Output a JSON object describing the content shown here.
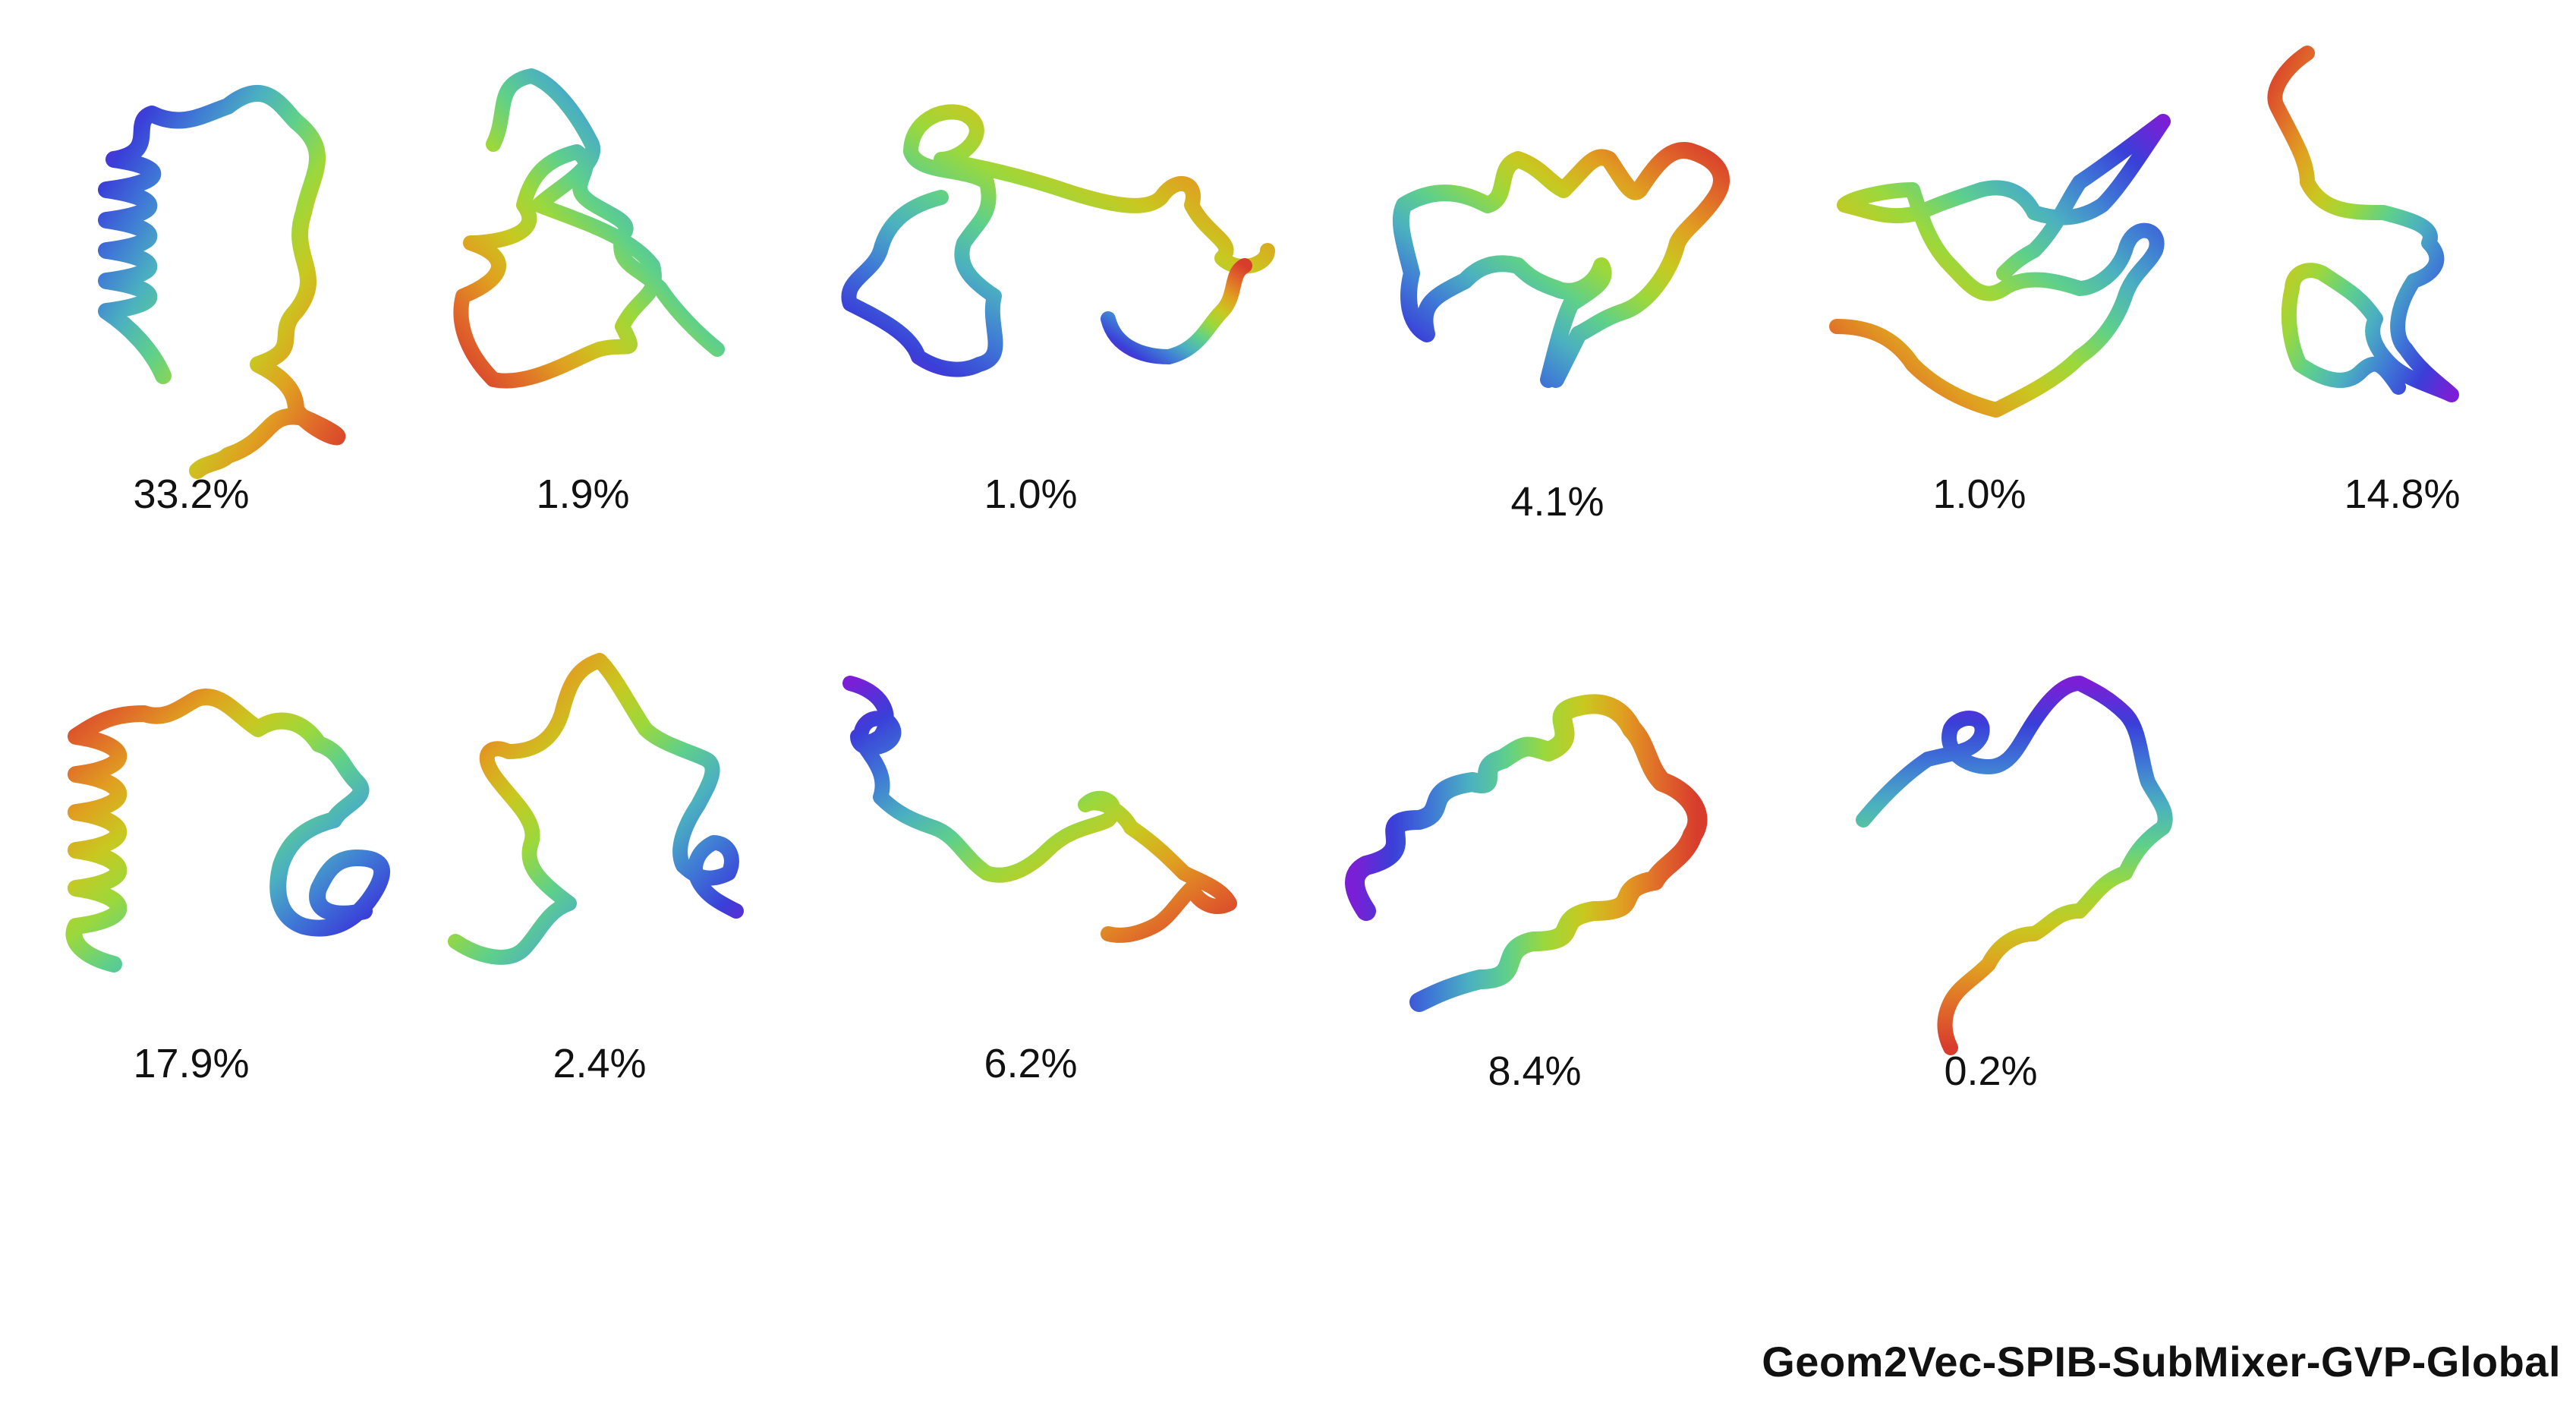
{
  "states": [
    {
      "percent": "33.2%"
    },
    {
      "percent": "1.9%"
    },
    {
      "percent": "1.0%"
    },
    {
      "percent": "4.1%"
    },
    {
      "percent": "1.0%"
    },
    {
      "percent": "14.8%"
    },
    {
      "percent": "17.9%"
    },
    {
      "percent": "2.4%"
    },
    {
      "percent": "6.2%"
    },
    {
      "percent": "8.4%"
    },
    {
      "percent": "0.2%"
    }
  ],
  "footer_label": "Geom2Vec-SPIB-SubMixer-GVP-Global",
  "palette": [
    "#7b1fd6",
    "#3a3fd8",
    "#3f78d6",
    "#4bb0c0",
    "#5fd08a",
    "#9bd83c",
    "#c8c820",
    "#e0a020",
    "#e06a2a",
    "#d83c2c"
  ]
}
